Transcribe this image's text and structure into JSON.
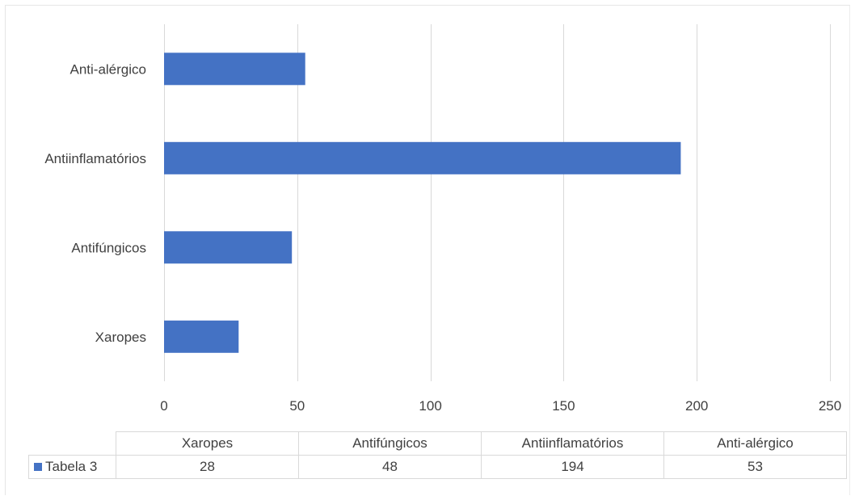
{
  "chart_data": {
    "type": "bar",
    "orientation": "horizontal",
    "categories": [
      "Xaropes",
      "Antifúngicos",
      "Antiinflamatórios",
      "Anti-alérgico"
    ],
    "series": [
      {
        "name": "Tabela 3",
        "values": [
          28,
          48,
          194,
          53
        ]
      }
    ],
    "xlim": [
      0,
      250
    ],
    "x_ticks": [
      0,
      50,
      100,
      150,
      200,
      250
    ],
    "x_tick_labels": [
      "0",
      "50",
      "100",
      "150",
      "200",
      "250"
    ],
    "grid": "vertical",
    "legend": "data-table",
    "title": "",
    "xlabel": "",
    "ylabel": ""
  },
  "colors": {
    "bar": "#4472c4",
    "grid": "#d9d9d9",
    "text": "#404040"
  }
}
